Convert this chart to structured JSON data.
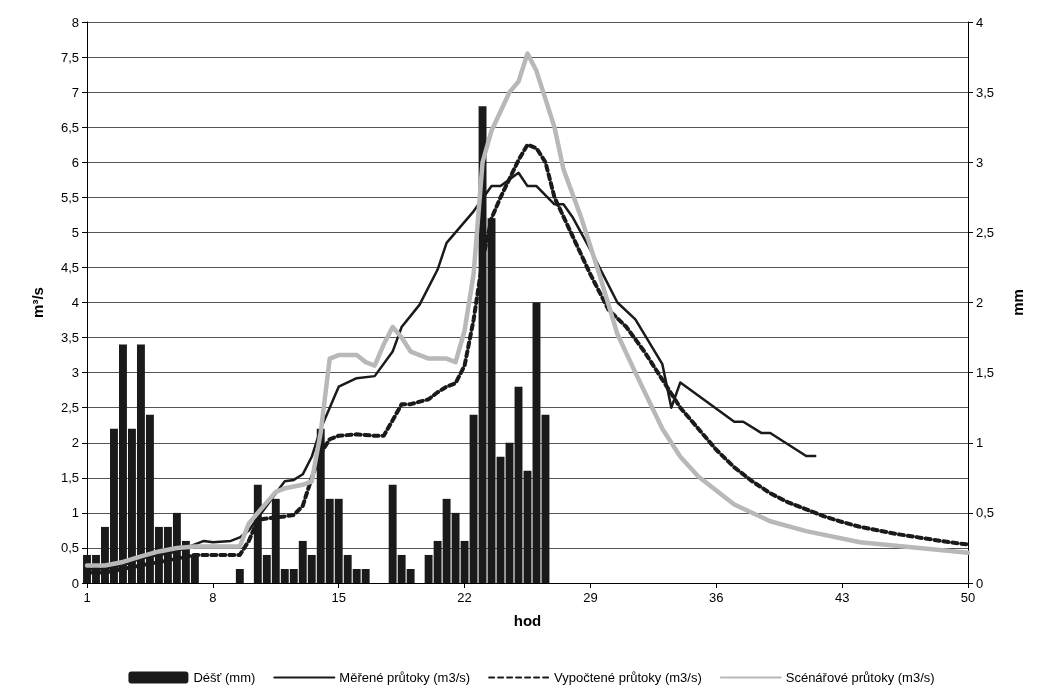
{
  "chart_data": {
    "type": "line",
    "xlabel": "hod",
    "ylabel": "m³/s",
    "y2label": "mm",
    "xlim": [
      1,
      50
    ],
    "xticks": [
      1,
      8,
      15,
      22,
      29,
      36,
      43,
      50
    ],
    "ylim": [
      0,
      8
    ],
    "yticks": [
      0,
      {
        "value": 0.5,
        "label": "0,5"
      },
      1,
      {
        "value": 1.5,
        "label": "1,5"
      },
      2,
      {
        "value": 2.5,
        "label": "2,5"
      },
      3,
      {
        "value": 3.5,
        "label": "3,5"
      },
      4,
      {
        "value": 4.5,
        "label": "4,5"
      },
      5,
      {
        "value": 5.5,
        "label": "5,5"
      },
      6,
      {
        "value": 6.5,
        "label": "6,5"
      },
      7,
      {
        "value": 7.5,
        "label": "7,5"
      },
      8
    ],
    "y2lim": [
      0,
      4
    ],
    "y2ticks": [
      0,
      {
        "value": 0.5,
        "label": "0,5"
      },
      1,
      {
        "value": 1.5,
        "label": "1,5"
      },
      2,
      {
        "value": 2.5,
        "label": "2,5"
      },
      3,
      {
        "value": 3.5,
        "label": "3,5"
      },
      4
    ],
    "grid": "y",
    "legend": "bottom",
    "marker": "none",
    "series": [
      {
        "name": "Déšť (mm)",
        "type": "bar",
        "axis": "y2",
        "color": "#1a1a1a",
        "x": [
          1,
          1.5,
          2,
          2.5,
          3,
          3.5,
          4,
          4.5,
          5,
          5.5,
          6,
          6.5,
          7,
          7.5,
          8,
          8.5,
          9,
          9.5,
          10,
          10.5,
          11,
          11.5,
          12,
          12.5,
          13,
          13.5,
          14,
          14.5,
          15,
          15.5,
          16,
          16.5,
          17,
          17.5,
          18,
          18.5,
          19,
          19.5,
          20,
          20.5,
          21,
          21.5,
          22,
          22.5,
          23,
          23.5,
          24,
          24.5,
          25,
          25.5,
          26,
          26.5
        ],
        "values": [
          0.2,
          0.2,
          0.4,
          1.1,
          1.7,
          1.1,
          1.7,
          1.2,
          0.4,
          0.4,
          0.5,
          0.3,
          0.2,
          0,
          0,
          0,
          0,
          0.1,
          0,
          0.7,
          0.2,
          0.6,
          0.1,
          0.1,
          0.3,
          0.2,
          1.1,
          0.6,
          0.6,
          0.2,
          0.1,
          0.1,
          0,
          0,
          0.7,
          0.2,
          0.1,
          0,
          0.2,
          0.3,
          0.6,
          0.5,
          0.3,
          1.2,
          3.4,
          2.6,
          0.9,
          1.0,
          1.4,
          0.8,
          2.0,
          1.2
        ]
      },
      {
        "name": "Měřené průtoky (m3/s)",
        "line_style": "solid",
        "color": "#1a1a1a",
        "x": [
          1,
          2,
          3,
          4,
          5,
          6,
          7,
          7.5,
          8,
          9,
          9.5,
          10,
          10.5,
          11,
          11.5,
          12,
          12.5,
          13,
          13.5,
          14,
          14.5,
          15,
          16,
          17,
          18,
          18.5,
          19.5,
          20.5,
          21,
          22.5,
          23.5,
          24,
          25,
          25.5,
          26,
          27,
          27.5,
          28,
          29,
          29.5,
          30.5,
          31.5,
          33,
          33.5,
          34,
          37,
          37.5,
          38.5,
          39,
          41,
          41.5
        ],
        "values": [
          0.2,
          0.2,
          0.25,
          0.35,
          0.4,
          0.45,
          0.55,
          0.6,
          0.58,
          0.6,
          0.65,
          0.75,
          0.93,
          1.1,
          1.28,
          1.45,
          1.47,
          1.55,
          1.8,
          2.2,
          2.5,
          2.8,
          2.92,
          2.95,
          3.3,
          3.65,
          3.97,
          4.47,
          4.85,
          5.3,
          5.66,
          5.66,
          5.85,
          5.66,
          5.66,
          5.4,
          5.4,
          5.22,
          4.75,
          4.5,
          4.0,
          3.76,
          3.12,
          2.5,
          2.86,
          2.3,
          2.3,
          2.14,
          2.14,
          1.81,
          1.81
        ]
      },
      {
        "name": "Vypočtené průtoky (m3/s)",
        "line_style": "dashed",
        "color": "#1a1a1a",
        "x": [
          1,
          2,
          3,
          4,
          5,
          6,
          7,
          8,
          9,
          9.5,
          10,
          10.5,
          11,
          12,
          12.5,
          13,
          13.5,
          14,
          14.5,
          15,
          16,
          17,
          17.5,
          18,
          18.5,
          19,
          20,
          20.5,
          21,
          21.5,
          22,
          22.5,
          23,
          23.5,
          24,
          25,
          25.5,
          26,
          26.5,
          27,
          28,
          29,
          30,
          31,
          32,
          33,
          34,
          35,
          36,
          37,
          38,
          39,
          40,
          41,
          42,
          43,
          44,
          45,
          46,
          47,
          48,
          49,
          50
        ],
        "values": [
          0.15,
          0.15,
          0.2,
          0.25,
          0.3,
          0.35,
          0.4,
          0.4,
          0.4,
          0.4,
          0.6,
          0.9,
          0.92,
          0.95,
          0.97,
          1.1,
          1.5,
          1.85,
          2.05,
          2.1,
          2.12,
          2.1,
          2.1,
          2.32,
          2.55,
          2.55,
          2.62,
          2.72,
          2.8,
          2.85,
          3.1,
          3.75,
          4.6,
          5.2,
          5.5,
          6.03,
          6.25,
          6.2,
          6.0,
          5.5,
          4.95,
          4.4,
          3.9,
          3.65,
          3.3,
          2.9,
          2.5,
          2.2,
          1.9,
          1.65,
          1.45,
          1.28,
          1.15,
          1.05,
          0.95,
          0.87,
          0.8,
          0.75,
          0.7,
          0.66,
          0.62,
          0.58,
          0.55
        ]
      },
      {
        "name": "Scénářové průtoky (m3/s)",
        "line_style": "solid",
        "color": "#b8b8b8",
        "x": [
          1,
          2,
          3,
          4,
          5,
          6,
          7,
          8,
          9,
          9.5,
          10,
          10.5,
          11,
          11.5,
          12,
          13,
          13.5,
          14,
          14.5,
          15,
          16,
          16.5,
          17,
          17.5,
          18,
          18.5,
          19,
          20,
          21,
          21.5,
          22,
          22.5,
          23,
          23.5,
          24.5,
          25,
          25.5,
          26,
          27,
          27.5,
          28.5,
          29.5,
          30.5,
          31.5,
          33,
          34,
          35,
          37,
          39,
          41,
          44,
          48,
          50
        ],
        "values": [
          0.25,
          0.25,
          0.3,
          0.38,
          0.45,
          0.5,
          0.52,
          0.52,
          0.52,
          0.52,
          0.85,
          1.0,
          1.15,
          1.3,
          1.35,
          1.4,
          1.45,
          2.15,
          3.2,
          3.25,
          3.25,
          3.15,
          3.1,
          3.4,
          3.65,
          3.5,
          3.3,
          3.2,
          3.2,
          3.15,
          3.6,
          4.4,
          6.0,
          6.45,
          7.0,
          7.15,
          7.55,
          7.3,
          6.5,
          5.9,
          5.2,
          4.4,
          3.55,
          3.0,
          2.2,
          1.8,
          1.52,
          1.12,
          0.88,
          0.74,
          0.58,
          0.48,
          0.43
        ]
      }
    ]
  }
}
